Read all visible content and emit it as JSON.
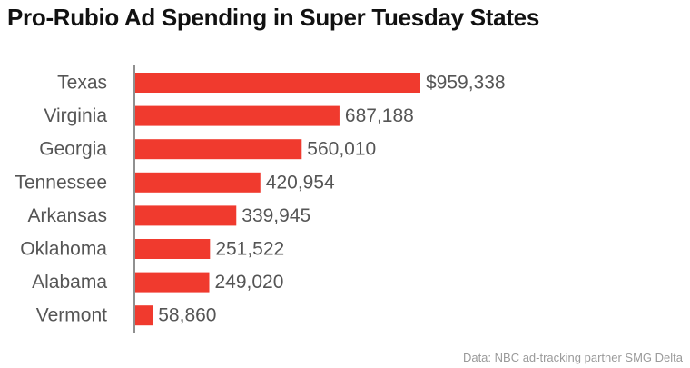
{
  "chart_data": {
    "type": "bar",
    "orientation": "horizontal",
    "title": "Pro-Rubio Ad Spending in Super Tuesday States",
    "categories": [
      "Texas",
      "Virginia",
      "Georgia",
      "Tennessee",
      "Arkansas",
      "Oklahoma",
      "Alabama",
      "Vermont"
    ],
    "values": [
      959338,
      687188,
      560010,
      420954,
      339945,
      251522,
      249020,
      58860
    ],
    "value_labels": [
      "$959,338",
      "687,188",
      "560,010",
      "420,954",
      "339,945",
      "251,522",
      "249,020",
      "58,860"
    ],
    "bar_color": "#f03a2e",
    "xlabel": "",
    "ylabel": "",
    "grid": false,
    "source": "Data: NBC ad-tracking partner SMG Delta"
  }
}
